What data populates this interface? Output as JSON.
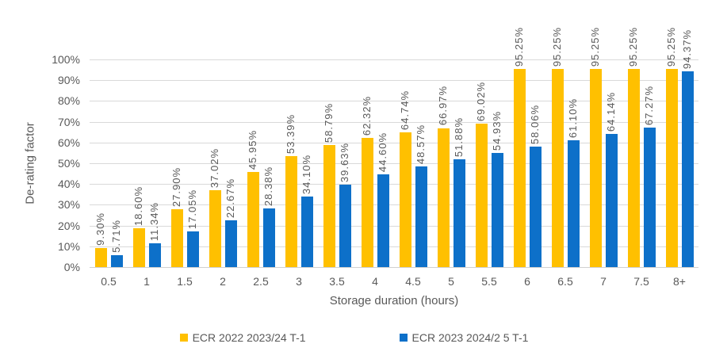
{
  "chart_data": {
    "type": "bar",
    "title": "",
    "xlabel": "Storage duration (hours)",
    "ylabel": "De-rating factor",
    "categories": [
      "0.5",
      "1",
      "1.5",
      "2",
      "2.5",
      "3",
      "3.5",
      "4",
      "4.5",
      "5",
      "5.5",
      "6",
      "6.5",
      "7",
      "7.5",
      "8+"
    ],
    "series": [
      {
        "name": "ECR 2022 2023/24 T-1",
        "color": "#FFC000",
        "values": [
          9.3,
          18.6,
          27.9,
          37.02,
          45.95,
          53.39,
          58.79,
          62.32,
          64.74,
          66.97,
          69.02,
          95.25,
          95.25,
          95.25,
          95.25,
          95.25
        ]
      },
      {
        "name": "ECR 2023 2024/2 5 T-1",
        "color": "#0D70C9",
        "values": [
          5.71,
          11.34,
          17.05,
          22.67,
          28.38,
          34.1,
          39.63,
          44.6,
          48.57,
          51.88,
          54.93,
          58.06,
          61.1,
          64.14,
          67.27,
          94.37
        ]
      }
    ],
    "ylim": [
      0,
      100
    ],
    "ytick_step": 10,
    "ytick_suffix": "%",
    "data_label_format": "two-decimals-percent",
    "data_label_rotation": -90,
    "grid": true,
    "legend_position": "bottom"
  },
  "colors": {
    "text": "#595959",
    "gridline": "#D9D9D9",
    "background": "#FFFFFF"
  }
}
